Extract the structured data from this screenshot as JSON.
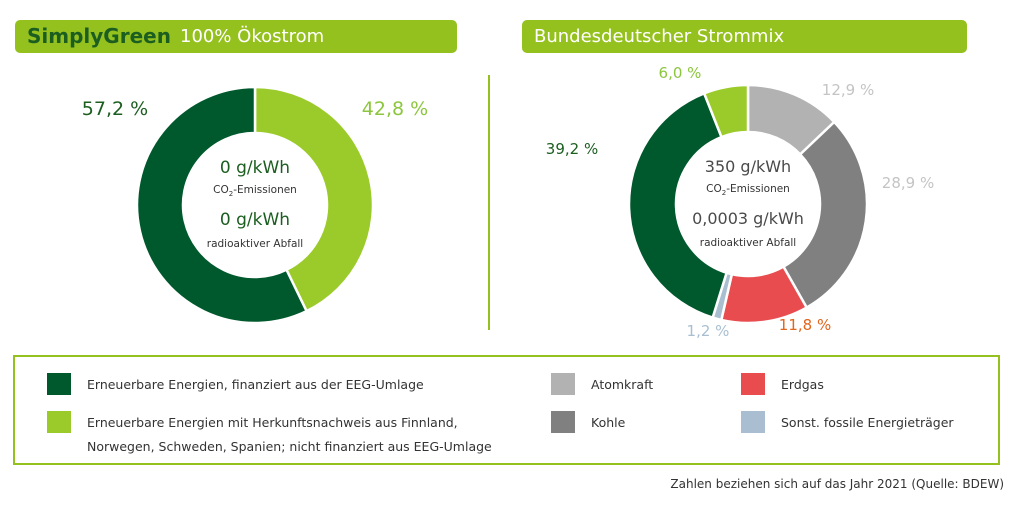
{
  "header": {
    "left": {
      "brand": "SimplyGreen",
      "title": "100% Ökostrom"
    },
    "right": {
      "title": "Bundesdeutscher Strommix"
    }
  },
  "colors": {
    "dark_green": "#00592c",
    "light_green": "#9bcb2a",
    "atomkraft": "#b2b2b2",
    "kohle": "#808080",
    "erdgas": "#e84c4f",
    "sonst": "#a9bfd1",
    "accent": "#95c11f"
  },
  "chart_data": [
    {
      "type": "pie",
      "title": "100% Ökostrom",
      "slices": [
        {
          "label": "Erneuerbare Energien mit Herkunftsnachweis aus Finnland, Norwegen, Schweden, Spanien; nicht finanziert aus EEG-Umlage",
          "value": 42.8,
          "display": "42,8 %",
          "color": "#9bcb2a",
          "text_color": "#8cc63e"
        },
        {
          "label": "Erneuerbare Energien, finanziert aus der EEG-Umlage",
          "value": 57.2,
          "display": "57,2 %",
          "color": "#00592c",
          "text_color": "#1b5e20"
        }
      ],
      "center": {
        "co2_value": "0 g/kWh",
        "co2_label": "CO",
        "co2_sub": "2",
        "co2_suffix": "-Emissionen",
        "waste_value": "0 g/kWh",
        "waste_label": "radioaktiver Abfall"
      }
    },
    {
      "type": "pie",
      "title": "Bundesdeutscher Strommix",
      "slices": [
        {
          "label": "Atomkraft",
          "value": 12.9,
          "display": "12,9 %",
          "color": "#b2b2b2",
          "text_color": "#c4c4c4"
        },
        {
          "label": "Kohle",
          "value": 28.9,
          "display": "28,9 %",
          "color": "#808080",
          "text_color": "#c4c4c4"
        },
        {
          "label": "Erdgas",
          "value": 11.8,
          "display": "11,8 %",
          "color": "#e84c4f",
          "text_color": "#e0661c"
        },
        {
          "label": "Sonst. fossile Energieträger",
          "value": 1.2,
          "display": "1,2 %",
          "color": "#a9bfd1",
          "text_color": "#a9bfd1"
        },
        {
          "label": "Erneuerbare Energien, finanziert aus der EEG-Umlage",
          "value": 39.2,
          "display": "39,2 %",
          "color": "#00592c",
          "text_color": "#1b5e20"
        },
        {
          "label": "Erneuerbare Energien mit Herkunftsnachweis",
          "value": 6.0,
          "display": "6,0 %",
          "color": "#9bcb2a",
          "text_color": "#8cc63e"
        }
      ],
      "center": {
        "co2_value": "350 g/kWh",
        "co2_label": "CO",
        "co2_sub": "2",
        "co2_suffix": "-Emissionen",
        "waste_value": "0,0003 g/kWh",
        "waste_label": "radioaktiver Abfall"
      }
    }
  ],
  "legend": {
    "items": [
      {
        "label": "Erneuerbare Energien, finanziert aus der EEG-Umlage",
        "color": "#00592c"
      },
      {
        "label_line1": "Erneuerbare Energien mit Herkunftsnachweis aus Finnland,",
        "label_line2": "Norwegen, Schweden, Spanien; nicht finanziert aus EEG-Umlage",
        "color": "#9bcb2a"
      },
      {
        "label": "Atomkraft",
        "color": "#b2b2b2"
      },
      {
        "label": "Kohle",
        "color": "#808080"
      },
      {
        "label": "Erdgas",
        "color": "#e84c4f"
      },
      {
        "label": "Sonst. fossile Energieträger",
        "color": "#a9bfd1"
      }
    ]
  },
  "footnote": "Zahlen beziehen sich auf das Jahr 2021 (Quelle: BDEW)"
}
